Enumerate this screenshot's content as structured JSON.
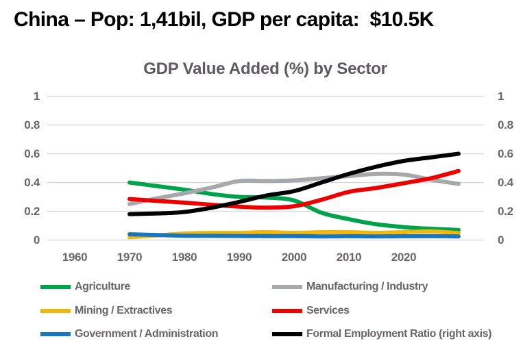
{
  "header": {
    "title": "China – Pop: 1,41bil, GDP per capita:  $10.5K"
  },
  "chart_data": {
    "type": "line",
    "title": "GDP Value Added (%) by Sector",
    "xlabel": "",
    "ylabel": "",
    "ylim": [
      0,
      1
    ],
    "grid": "horizontal",
    "legend_position": "bottom",
    "dual_axis_note": "identical value axis shown on left and right; black series labeled for right axis",
    "x": [
      1970,
      1975,
      1980,
      1985,
      1990,
      1995,
      2000,
      2005,
      2010,
      2015,
      2020,
      2025,
      2030
    ],
    "x_tick_labels": [
      "1960",
      "1970",
      "1980",
      "1990",
      "2000",
      "2010",
      "2020"
    ],
    "y_tick_labels": [
      "0",
      "0.2",
      "0.4",
      "0.6",
      "0.8",
      "1"
    ],
    "series": [
      {
        "name": "Agriculture",
        "color": "#00A24C",
        "values": [
          0.4,
          0.375,
          0.35,
          0.32,
          0.3,
          0.295,
          0.275,
          0.19,
          0.145,
          0.11,
          0.09,
          0.078,
          0.07
        ]
      },
      {
        "name": "Manufacturing / Industry",
        "color": "#A6A8AB",
        "values": [
          0.25,
          0.29,
          0.325,
          0.365,
          0.41,
          0.41,
          0.415,
          0.43,
          0.445,
          0.46,
          0.455,
          0.42,
          0.39
        ]
      },
      {
        "name": "Mining / Extractives",
        "color": "#EFB810",
        "values": [
          0.02,
          0.032,
          0.045,
          0.05,
          0.05,
          0.055,
          0.05,
          0.055,
          0.055,
          0.05,
          0.055,
          0.06,
          0.048
        ]
      },
      {
        "name": "Services",
        "color": "#EC0000",
        "values": [
          0.285,
          0.272,
          0.26,
          0.245,
          0.232,
          0.225,
          0.235,
          0.28,
          0.335,
          0.362,
          0.395,
          0.43,
          0.48
        ]
      },
      {
        "name": "Government / Administration",
        "color": "#1B75BC",
        "values": [
          0.04,
          0.035,
          0.03,
          0.029,
          0.028,
          0.027,
          0.027,
          0.025,
          0.026,
          0.025,
          0.026,
          0.027,
          0.025
        ]
      },
      {
        "name": "Formal Employment Ratio (right axis)",
        "color": "#000000",
        "values": [
          0.18,
          0.185,
          0.195,
          0.225,
          0.265,
          0.31,
          0.34,
          0.4,
          0.46,
          0.51,
          0.55,
          0.575,
          0.6
        ]
      }
    ]
  },
  "colors": {
    "grid_line": "#DDD9DB",
    "tick_text": "#6B6569",
    "chart_title_text": "#5F5A62",
    "main_title_text": "#000000",
    "background": "#FFFFFF"
  }
}
